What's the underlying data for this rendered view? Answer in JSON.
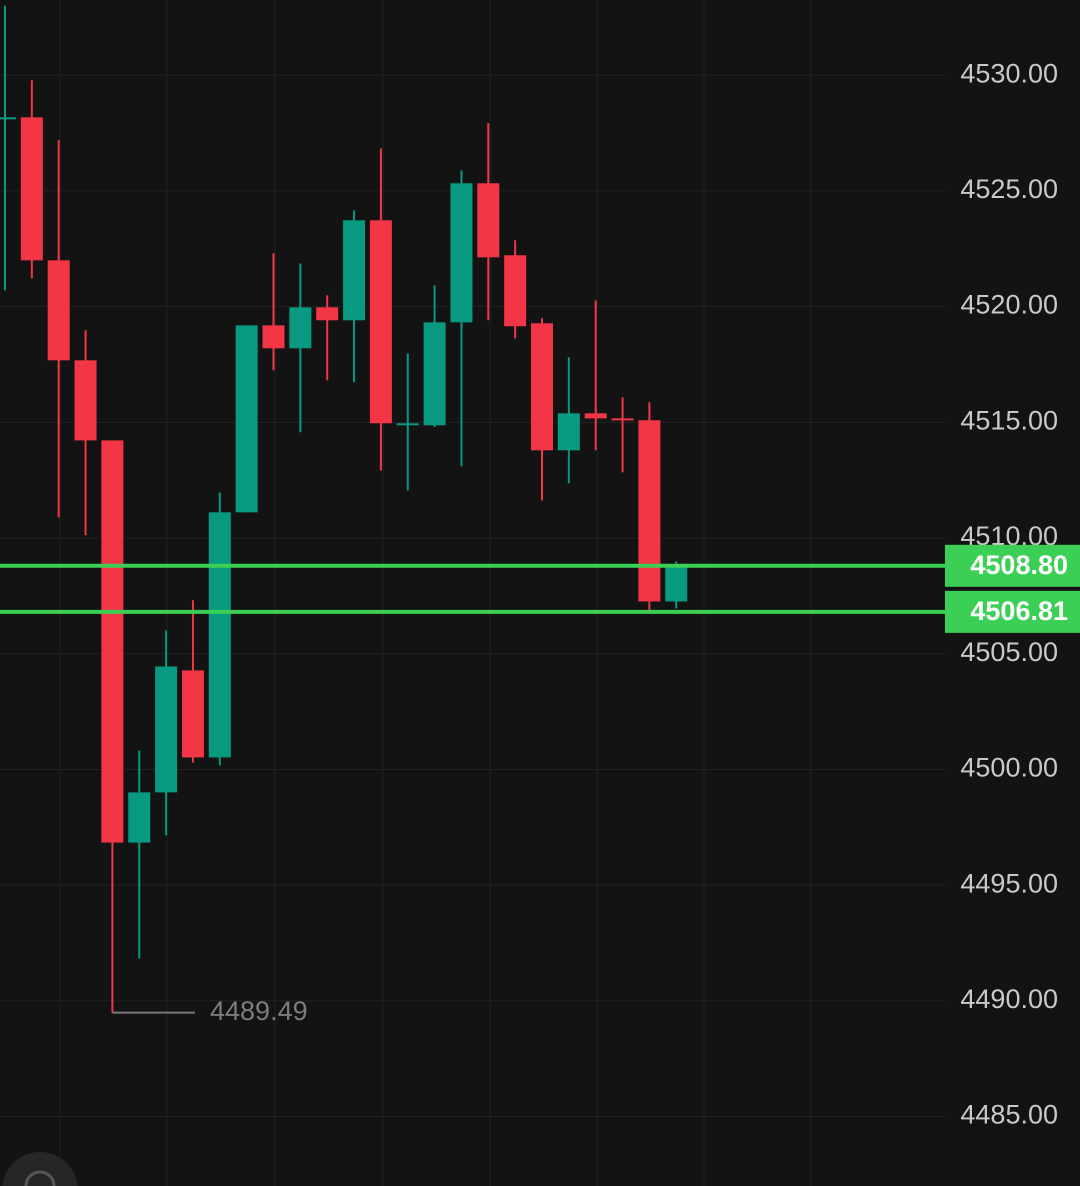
{
  "chart_data": {
    "type": "candlestick",
    "categories": [
      null,
      null,
      null,
      null,
      null,
      null,
      null,
      null,
      null,
      null,
      null,
      null,
      null,
      null,
      null,
      null,
      null,
      null,
      null,
      null,
      null,
      null,
      null,
      null,
      null,
      null
    ],
    "open": [
      4528.18,
      4528.18,
      4522.0,
      4517.68,
      4514.22,
      4496.84,
      4499.01,
      4504.28,
      4500.52,
      4511.11,
      4519.19,
      4518.2,
      4519.97,
      4519.41,
      4523.73,
      4514.96,
      4514.87,
      4519.32,
      4525.33,
      4522.22,
      4519.28,
      4513.79,
      4515.39,
      4515.17,
      4515.09,
      4507.26
    ],
    "high": [
      4533.0,
      4529.78,
      4527.19,
      4518.98,
      4514.22,
      4500.82,
      4506.01,
      4507.31,
      4511.97,
      4519.19,
      4522.31,
      4521.87,
      4520.49,
      4524.16,
      4526.84,
      4517.98,
      4520.92,
      4525.89,
      4527.93,
      4522.87,
      4519.5,
      4517.81,
      4520.27,
      4516.08,
      4515.86,
      4508.99
    ],
    "low": [
      4520.7,
      4521.22,
      4510.89,
      4510.12,
      4489.49,
      4491.83,
      4497.15,
      4500.3,
      4500.17,
      4511.11,
      4517.25,
      4514.57,
      4516.82,
      4516.73,
      4512.92,
      4512.06,
      4514.8,
      4513.1,
      4519.41,
      4518.63,
      4511.63,
      4512.36,
      4513.79,
      4512.84,
      4506.87,
      4506.96
    ],
    "close": [
      4528.18,
      4522.0,
      4517.68,
      4514.22,
      4496.84,
      4499.01,
      4504.45,
      4500.52,
      4511.11,
      4519.19,
      4518.2,
      4519.97,
      4519.41,
      4523.73,
      4514.96,
      4514.96,
      4519.32,
      4525.33,
      4522.13,
      4519.15,
      4513.79,
      4515.39,
      4515.17,
      4515.1,
      4507.26,
      4508.8
    ],
    "up_color": "#089981",
    "down_color": "#f23645",
    "ylim": [
      4482,
      4533.25
    ],
    "yticks": [
      {
        "value": 4485,
        "label": "4485.00"
      },
      {
        "value": 4490,
        "label": "4490.00"
      },
      {
        "value": 4495,
        "label": "4495.00"
      },
      {
        "value": 4500,
        "label": "4500.00"
      },
      {
        "value": 4505,
        "label": "4505.00"
      },
      {
        "value": 4510,
        "label": "4510.00"
      },
      {
        "value": 4515,
        "label": "4515.00"
      },
      {
        "value": 4520,
        "label": "4520.00"
      },
      {
        "value": 4525,
        "label": "4525.00"
      },
      {
        "value": 4530,
        "label": "4530.00"
      }
    ],
    "grid": true,
    "price_lines": [
      {
        "value": 4508.8,
        "label": "4508.80",
        "color": "#3ccf55"
      },
      {
        "value": 4506.81,
        "label": "4506.81",
        "color": "#3ccf55"
      }
    ],
    "low_marker": 4489.49
  }
}
